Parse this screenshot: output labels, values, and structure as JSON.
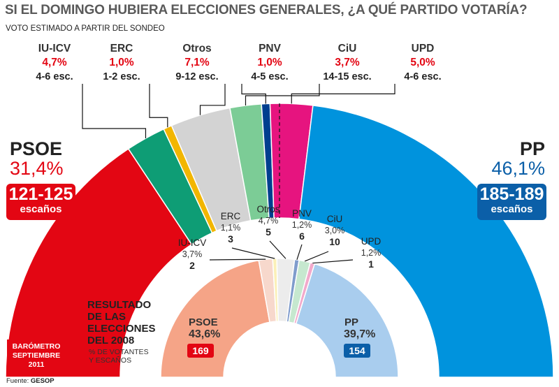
{
  "header": {
    "title": "SI EL DOMINGO HUBIERA ELECCIONES GENERALES, ¿A QUÉ PARTIDO VOTARÍA?",
    "subtitle": "VOTO ESTIMADO A PARTIR DEL SONDEO"
  },
  "colors": {
    "PSOE": "#e30613",
    "IU-ICV": "#0e9d75",
    "ERC": "#f2b600",
    "Otros": "#d3d3d3",
    "CiU": "#7ccc96",
    "PNV": "#003f8f",
    "UPD": "#e6147f",
    "PP": "#0093dd",
    "PSOE_2008": "#f5a487",
    "PP_2008": "#a9cdee",
    "IU-ICV_2008": "#f7d8cc",
    "ERC_2008": "#fbf0b8",
    "Otros_2008": "#ececec",
    "CiU_2008": "#c6e8cf",
    "PNV_2008": "#7f9ccc",
    "UPD_2008": "#f2a9cb"
  },
  "chart_data": [
    {
      "type": "pie",
      "title": "Voto estimado (sondeo)",
      "categories": [
        "PSOE",
        "IU-ICV",
        "ERC",
        "Otros",
        "CiU",
        "PNV",
        "UPD",
        "PP"
      ],
      "values": [
        31.4,
        4.7,
        1.0,
        7.1,
        3.7,
        1.0,
        5.0,
        46.1
      ],
      "value_labels": [
        "31,4%",
        "4,7%",
        "1,0%",
        "7,1%",
        "3,7%",
        "1,0%",
        "5,0%",
        "46,1%"
      ],
      "seats": [
        "121-125",
        "4-6 esc.",
        "1-2 esc.",
        "9-12 esc.",
        "14-15 esc.",
        "4-5 esc.",
        "4-6 esc.",
        "185-189"
      ],
      "seats_unit": "escaños"
    },
    {
      "type": "pie",
      "title": "Resultado de las elecciones del 2008",
      "categories": [
        "PSOE",
        "IU-ICV",
        "ERC",
        "Otros",
        "PNV",
        "CiU",
        "UPD",
        "PP"
      ],
      "values": [
        43.6,
        3.7,
        1.1,
        4.7,
        1.2,
        3.0,
        1.2,
        39.7
      ],
      "value_labels": [
        "43,6%",
        "3,7%",
        "1,1%",
        "4,7%",
        "1,2%",
        "3,0%",
        "1,2%",
        "39,7%"
      ],
      "seats": [
        169,
        2,
        3,
        5,
        6,
        10,
        1,
        154
      ]
    }
  ],
  "main": {
    "psoe": {
      "name": "PSOE",
      "pct": "31,4%",
      "seats": "121-125",
      "unit": "escaños"
    },
    "pp": {
      "name": "PP",
      "pct": "46,1%",
      "seats": "185-189",
      "unit": "escaños"
    },
    "minor": [
      {
        "name": "IU-ICV",
        "pct": "4,7%",
        "seats": "4-6 esc."
      },
      {
        "name": "ERC",
        "pct": "1,0%",
        "seats": "1-2 esc."
      },
      {
        "name": "Otros",
        "pct": "7,1%",
        "seats": "9-12 esc."
      },
      {
        "name": "PNV",
        "pct": "1,0%",
        "seats": "4-5 esc."
      },
      {
        "name": "CiU",
        "pct": "3,7%",
        "seats": "14-15 esc."
      },
      {
        "name": "UPD",
        "pct": "5,0%",
        "seats": "4-6 esc."
      }
    ]
  },
  "result2008": {
    "title_lines": [
      "RESULTADO",
      "DE LAS",
      "ELECCIONES",
      "DEL 2008"
    ],
    "note_lines": [
      "% DE VOTANTES",
      "Y ESCAÑOS"
    ],
    "psoe": {
      "name": "PSOE",
      "pct": "43,6%",
      "seats": "169"
    },
    "pp": {
      "name": "PP",
      "pct": "39,7%",
      "seats": "154"
    },
    "minor": [
      {
        "name": "IU-ICV",
        "pct": "3,7%",
        "seats": "2"
      },
      {
        "name": "ERC",
        "pct": "1,1%",
        "seats": "3"
      },
      {
        "name": "Otros",
        "pct": "4,7%",
        "seats": "5"
      },
      {
        "name": "PNV",
        "pct": "1,2%",
        "seats": "6"
      },
      {
        "name": "CiU",
        "pct": "3,0%",
        "seats": "10"
      },
      {
        "name": "UPD",
        "pct": "1,2%",
        "seats": "1"
      }
    ]
  },
  "footer": {
    "barometro_lines": [
      "BARÓMETRO",
      "SEPTIEMBRE",
      "2011"
    ],
    "fuente_label": "Fuente:",
    "fuente_source": "GESOP"
  }
}
